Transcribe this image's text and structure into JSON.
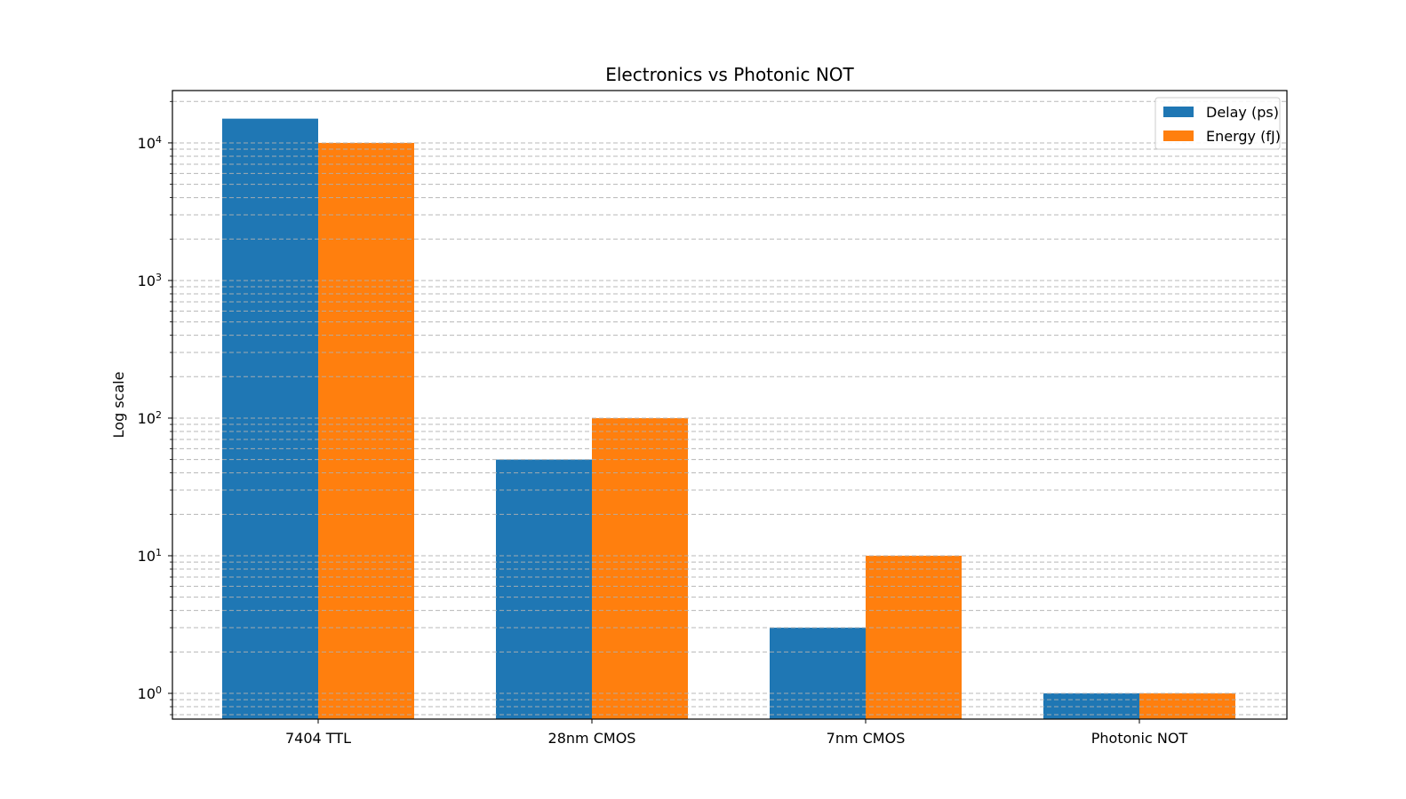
{
  "chart_data": {
    "type": "bar",
    "title": "Electronics vs Photonic NOT",
    "xlabel": "",
    "ylabel": "Log scale",
    "yscale": "log",
    "ylim": [
      0.65,
      24000
    ],
    "grid": true,
    "grid_axis": "y",
    "grid_which": "both",
    "grid_style": "dashed",
    "legend_position": "top-right",
    "categories": [
      "7404 TTL",
      "28nm CMOS",
      "7nm CMOS",
      "Photonic NOT"
    ],
    "series": [
      {
        "name": "Delay (ps)",
        "color": "#1f77b4",
        "values": [
          15000,
          50,
          3,
          1
        ]
      },
      {
        "name": "Energy (fJ)",
        "color": "#ff7f0e",
        "values": [
          10000,
          100,
          10,
          1
        ]
      }
    ],
    "yticks": [
      {
        "base": "10",
        "exp": "0",
        "value": 1
      },
      {
        "base": "10",
        "exp": "1",
        "value": 10
      },
      {
        "base": "10",
        "exp": "2",
        "value": 100
      },
      {
        "base": "10",
        "exp": "3",
        "value": 1000
      },
      {
        "base": "10",
        "exp": "4",
        "value": 10000
      }
    ]
  }
}
